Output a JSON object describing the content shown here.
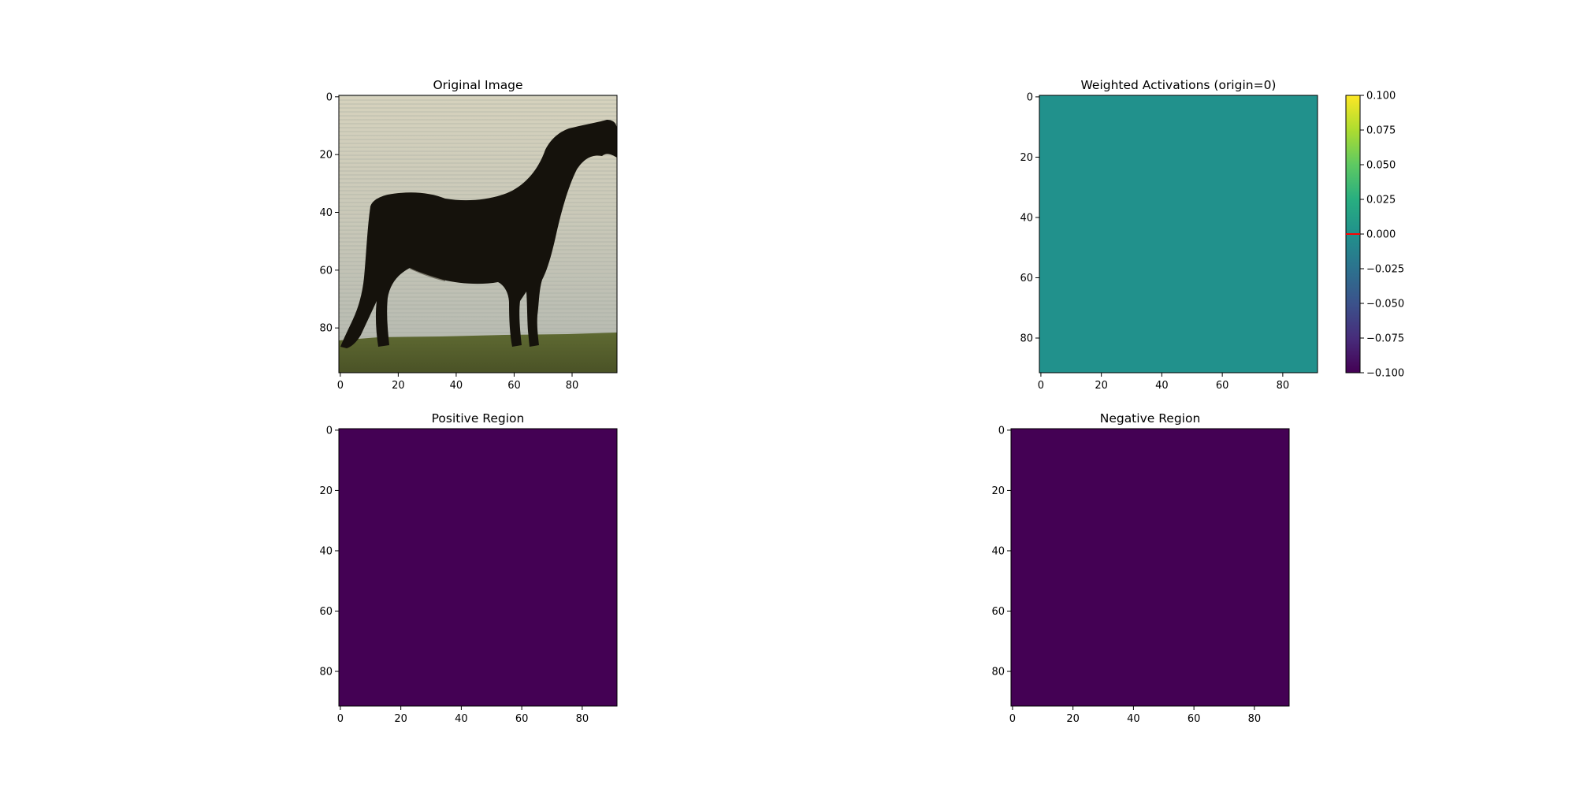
{
  "chart_data": [
    {
      "type": "heatmap",
      "title": "Original Image",
      "content": "photo",
      "image_description": "dark horse silhouette standing on grass in front of water",
      "xlim": [
        -0.5,
        95.5
      ],
      "ylim": [
        95.5,
        -0.5
      ],
      "xticks": [
        0,
        20,
        40,
        60,
        80
      ],
      "yticks": [
        0,
        20,
        40,
        60,
        80
      ],
      "colorbar": null
    },
    {
      "type": "heatmap",
      "title": "Weighted Activations (origin=0)",
      "content": "uniform",
      "uniform_value": 0.0,
      "fill_color": "#21918c",
      "colormap": "viridis",
      "xlim": [
        -0.5,
        91.5
      ],
      "ylim": [
        91.5,
        -0.5
      ],
      "xticks": [
        0,
        20,
        40,
        60,
        80
      ],
      "yticks": [
        0,
        20,
        40,
        60,
        80
      ],
      "colorbar": {
        "ticks": [
          0.1,
          0.075,
          0.05,
          0.025,
          0.0,
          -0.025,
          -0.05,
          -0.075,
          -0.1
        ],
        "tick_labels": [
          "0.100",
          "0.075",
          "0.050",
          "0.025",
          "0.000",
          "−0.025",
          "−0.050",
          "−0.075",
          "−0.100"
        ],
        "vmin": -0.1,
        "vmax": 0.1,
        "marker_value": 0.0,
        "marker_color": "#ff0000"
      }
    },
    {
      "type": "heatmap",
      "title": "Positive Region",
      "content": "uniform",
      "uniform_value": 0,
      "fill_color": "#440154",
      "xlim": [
        -0.5,
        91.5
      ],
      "ylim": [
        91.5,
        -0.5
      ],
      "xticks": [
        0,
        20,
        40,
        60,
        80
      ],
      "yticks": [
        0,
        20,
        40,
        60,
        80
      ],
      "colorbar": null
    },
    {
      "type": "heatmap",
      "title": "Negative Region",
      "content": "uniform",
      "uniform_value": 0,
      "fill_color": "#440154",
      "xlim": [
        -0.5,
        91.5
      ],
      "ylim": [
        91.5,
        -0.5
      ],
      "xticks": [
        0,
        20,
        40,
        60,
        80
      ],
      "yticks": [
        0,
        20,
        40,
        60,
        80
      ],
      "colorbar": null
    }
  ]
}
